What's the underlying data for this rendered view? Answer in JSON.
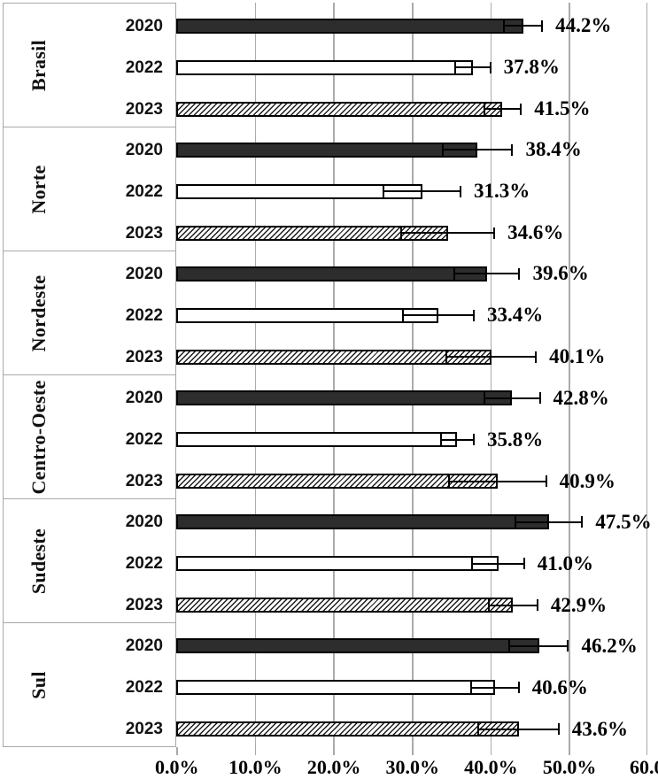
{
  "chart_data": {
    "type": "bar",
    "orientation": "horizontal",
    "title": "",
    "xlabel": "",
    "ylabel": "",
    "xlim": [
      0,
      60
    ],
    "grid": true,
    "x_tick_values": [
      0,
      10,
      20,
      30,
      40,
      50,
      60
    ],
    "x_tick_labels": [
      "0.0%",
      "10.0%",
      "20.0%",
      "30.0%",
      "40.0%",
      "50.0%",
      "60.0"
    ],
    "series_legend": [
      "2020",
      "2022",
      "2023"
    ],
    "bar_styles": {
      "2020": "solid-dark",
      "2022": "white-outline",
      "2023": "diagonal-hatch"
    },
    "error_bars": "95% CI (estimated from whiskers)",
    "groups": [
      {
        "region": "Brasil",
        "bars": [
          {
            "year": "2020",
            "value": 44.2,
            "label": "44.2%",
            "ci": [
              41.7,
              46.6
            ],
            "style": "solid-dark"
          },
          {
            "year": "2022",
            "value": 37.8,
            "label": "37.8%",
            "ci": [
              35.5,
              40.0
            ],
            "style": "white-outline"
          },
          {
            "year": "2023",
            "value": 41.5,
            "label": "41.5%",
            "ci": [
              39.2,
              43.9
            ],
            "style": "diagonal-hatch"
          }
        ]
      },
      {
        "region": "Norte",
        "bars": [
          {
            "year": "2020",
            "value": 38.4,
            "label": "38.4%",
            "ci": [
              34.0,
              42.8
            ],
            "style": "solid-dark"
          },
          {
            "year": "2022",
            "value": 31.3,
            "label": "31.3%",
            "ci": [
              26.4,
              36.2
            ],
            "style": "white-outline"
          },
          {
            "year": "2023",
            "value": 34.6,
            "label": "34.6%",
            "ci": [
              28.7,
              40.5
            ],
            "style": "diagonal-hatch"
          }
        ]
      },
      {
        "region": "Nordeste",
        "bars": [
          {
            "year": "2020",
            "value": 39.6,
            "label": "39.6%",
            "ci": [
              35.4,
              43.7
            ],
            "style": "solid-dark"
          },
          {
            "year": "2022",
            "value": 33.4,
            "label": "33.4%",
            "ci": [
              28.9,
              37.9
            ],
            "style": "white-outline"
          },
          {
            "year": "2023",
            "value": 40.1,
            "label": "40.1%",
            "ci": [
              34.4,
              45.8
            ],
            "style": "diagonal-hatch"
          }
        ]
      },
      {
        "region": "Centro-Oeste",
        "bars": [
          {
            "year": "2020",
            "value": 42.8,
            "label": "42.8%",
            "ci": [
              39.2,
              46.3
            ],
            "style": "solid-dark"
          },
          {
            "year": "2022",
            "value": 35.8,
            "label": "35.8%",
            "ci": [
              33.7,
              37.9
            ],
            "style": "white-outline"
          },
          {
            "year": "2023",
            "value": 40.9,
            "label": "40.9%",
            "ci": [
              34.7,
              47.1
            ],
            "style": "diagonal-hatch"
          }
        ]
      },
      {
        "region": "Sudeste",
        "bars": [
          {
            "year": "2020",
            "value": 47.5,
            "label": "47.5%",
            "ci": [
              43.2,
              51.7
            ],
            "style": "solid-dark"
          },
          {
            "year": "2022",
            "value": 41.0,
            "label": "41.0%",
            "ci": [
              37.7,
              44.3
            ],
            "style": "white-outline"
          },
          {
            "year": "2023",
            "value": 42.9,
            "label": "42.9%",
            "ci": [
              39.8,
              46.0
            ],
            "style": "diagonal-hatch"
          }
        ]
      },
      {
        "region": "Sul",
        "bars": [
          {
            "year": "2020",
            "value": 46.2,
            "label": "46.2%",
            "ci": [
              42.4,
              49.9
            ],
            "style": "solid-dark"
          },
          {
            "year": "2022",
            "value": 40.6,
            "label": "40.6%",
            "ci": [
              37.5,
              43.6
            ],
            "style": "white-outline"
          },
          {
            "year": "2023",
            "value": 43.6,
            "label": "43.6%",
            "ci": [
              38.5,
              48.7
            ],
            "style": "diagonal-hatch"
          }
        ]
      }
    ],
    "colors": {
      "bar_dark": "#2d2d2d",
      "bar_border": "#000000",
      "gridline": "#ababab",
      "box_border": "#a8a8a8",
      "text": "#000000",
      "background": "#ffffff"
    }
  }
}
